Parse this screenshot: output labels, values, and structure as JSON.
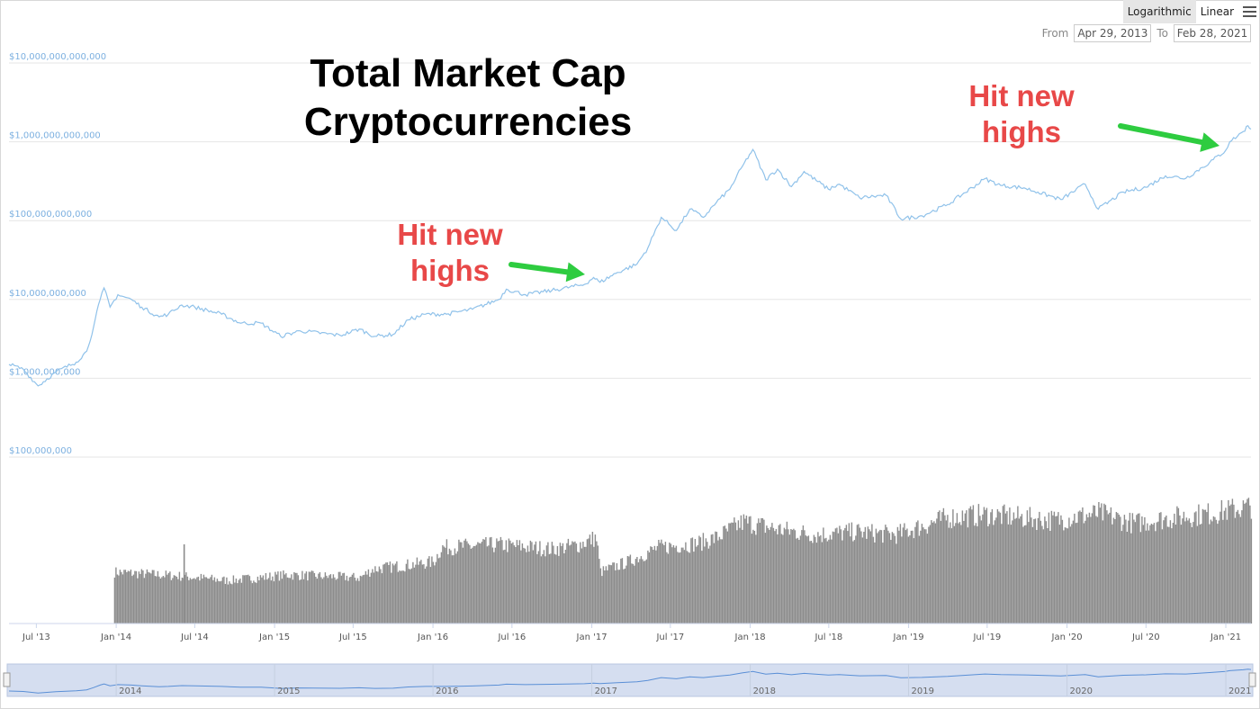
{
  "toolbar": {
    "scale_options": [
      "Logarithmic",
      "Linear"
    ],
    "active_scale": "Logarithmic",
    "menu_icon": "hamburger-menu-icon"
  },
  "date_range": {
    "from_label": "From",
    "from_value": "Apr 29, 2013",
    "to_label": "To",
    "to_value": "Feb 28, 2021"
  },
  "chart_data": {
    "type": "line",
    "title": "Total Market Cap\nCryptocurrencies",
    "y_scale": "log",
    "ylim": [
      100000000,
      10000000000000
    ],
    "y_ticks": [
      {
        "value": 10000000000000,
        "label": "$10,000,000,000,000"
      },
      {
        "value": 1000000000000,
        "label": "$1,000,000,000,000"
      },
      {
        "value": 100000000000,
        "label": "$100,000,000,000"
      },
      {
        "value": 10000000000,
        "label": "$10,000,000,000"
      },
      {
        "value": 1000000000,
        "label": "$1,000,000,000"
      },
      {
        "value": 100000000,
        "label": "$100,000,000"
      }
    ],
    "x_range": [
      "2013-04-29",
      "2021-02-28"
    ],
    "x_ticks": [
      {
        "date": "2013-07-01",
        "label": "Jul '13"
      },
      {
        "date": "2014-01-01",
        "label": "Jan '14"
      },
      {
        "date": "2014-07-01",
        "label": "Jul '14"
      },
      {
        "date": "2015-01-01",
        "label": "Jan '15"
      },
      {
        "date": "2015-07-01",
        "label": "Jul '15"
      },
      {
        "date": "2016-01-01",
        "label": "Jan '16"
      },
      {
        "date": "2016-07-01",
        "label": "Jul '16"
      },
      {
        "date": "2017-01-01",
        "label": "Jan '17"
      },
      {
        "date": "2017-07-01",
        "label": "Jul '17"
      },
      {
        "date": "2018-01-01",
        "label": "Jan '18"
      },
      {
        "date": "2018-07-01",
        "label": "Jul '18"
      },
      {
        "date": "2019-01-01",
        "label": "Jan '19"
      },
      {
        "date": "2019-07-01",
        "label": "Jul '19"
      },
      {
        "date": "2020-01-01",
        "label": "Jan '20"
      },
      {
        "date": "2020-07-01",
        "label": "Jul '20"
      },
      {
        "date": "2021-01-01",
        "label": "Jan '21"
      }
    ],
    "series": [
      {
        "color": "#90c2ea",
        "points": [
          [
            "2013-04-29",
            1500000000
          ],
          [
            "2013-06-01",
            1300000000
          ],
          [
            "2013-07-05",
            800000000
          ],
          [
            "2013-08-15",
            1200000000
          ],
          [
            "2013-10-01",
            1600000000
          ],
          [
            "2013-10-25",
            2200000000
          ],
          [
            "2013-11-10",
            4500000000
          ],
          [
            "2013-11-25",
            10000000000
          ],
          [
            "2013-12-04",
            14000000000
          ],
          [
            "2013-12-18",
            8000000000
          ],
          [
            "2014-01-05",
            11500000000
          ],
          [
            "2014-02-05",
            10000000000
          ],
          [
            "2014-03-01",
            8000000000
          ],
          [
            "2014-04-10",
            6000000000
          ],
          [
            "2014-05-01",
            6500000000
          ],
          [
            "2014-06-01",
            8500000000
          ],
          [
            "2014-07-01",
            8000000000
          ],
          [
            "2014-09-01",
            6500000000
          ],
          [
            "2014-10-15",
            5000000000
          ],
          [
            "2014-12-01",
            5000000000
          ],
          [
            "2015-01-15",
            3400000000
          ],
          [
            "2015-03-01",
            4000000000
          ],
          [
            "2015-06-01",
            3500000000
          ],
          [
            "2015-07-15",
            4200000000
          ],
          [
            "2015-08-20",
            3400000000
          ],
          [
            "2015-10-01",
            3600000000
          ],
          [
            "2015-11-05",
            5500000000
          ],
          [
            "2015-12-15",
            6500000000
          ],
          [
            "2016-02-01",
            6500000000
          ],
          [
            "2016-04-01",
            7500000000
          ],
          [
            "2016-06-01",
            10000000000
          ],
          [
            "2016-06-18",
            13500000000
          ],
          [
            "2016-08-01",
            11500000000
          ],
          [
            "2016-10-01",
            13000000000
          ],
          [
            "2016-12-15",
            15500000000
          ],
          [
            "2017-01-05",
            19000000000
          ],
          [
            "2017-01-20",
            16500000000
          ],
          [
            "2017-03-01",
            22000000000
          ],
          [
            "2017-04-15",
            28000000000
          ],
          [
            "2017-05-10",
            45000000000
          ],
          [
            "2017-06-10",
            110000000000
          ],
          [
            "2017-07-15",
            75000000000
          ],
          [
            "2017-08-15",
            140000000000
          ],
          [
            "2017-09-15",
            110000000000
          ],
          [
            "2017-10-15",
            170000000000
          ],
          [
            "2017-11-15",
            250000000000
          ],
          [
            "2017-12-15",
            500000000000
          ],
          [
            "2018-01-07",
            800000000000
          ],
          [
            "2018-02-06",
            330000000000
          ],
          [
            "2018-03-05",
            450000000000
          ],
          [
            "2018-04-06",
            270000000000
          ],
          [
            "2018-05-05",
            420000000000
          ],
          [
            "2018-06-30",
            250000000000
          ],
          [
            "2018-07-25",
            290000000000
          ],
          [
            "2018-09-10",
            195000000000
          ],
          [
            "2018-11-10",
            210000000000
          ],
          [
            "2018-12-14",
            105000000000
          ],
          [
            "2019-02-01",
            115000000000
          ],
          [
            "2019-04-01",
            160000000000
          ],
          [
            "2019-06-26",
            340000000000
          ],
          [
            "2019-08-01",
            280000000000
          ],
          [
            "2019-09-24",
            260000000000
          ],
          [
            "2019-10-26",
            230000000000
          ],
          [
            "2019-12-18",
            185000000000
          ],
          [
            "2020-02-12",
            290000000000
          ],
          [
            "2020-03-13",
            140000000000
          ],
          [
            "2020-05-10",
            230000000000
          ],
          [
            "2020-07-01",
            265000000000
          ],
          [
            "2020-08-15",
            370000000000
          ],
          [
            "2020-10-01",
            345000000000
          ],
          [
            "2020-11-25",
            550000000000
          ],
          [
            "2020-12-31",
            770000000000
          ],
          [
            "2021-01-10",
            1000000000000
          ],
          [
            "2021-02-10",
            1350000000000
          ],
          [
            "2021-02-21",
            1600000000000
          ],
          [
            "2021-02-28",
            1450000000000
          ]
        ]
      }
    ],
    "volume_series": {
      "color": "#8c8c8c",
      "start": "2013-12-27",
      "levels": [
        [
          "2013-12-27",
          0.36
        ],
        [
          "2014-06-01",
          0.33
        ],
        [
          "2014-09-15",
          0.3
        ],
        [
          "2015-02-01",
          0.34
        ],
        [
          "2015-07-15",
          0.32
        ],
        [
          "2015-08-15",
          0.38
        ],
        [
          "2016-01-01",
          0.43
        ],
        [
          "2016-01-20",
          0.53
        ],
        [
          "2016-06-01",
          0.55
        ],
        [
          "2016-10-01",
          0.52
        ],
        [
          "2016-12-01",
          0.55
        ],
        [
          "2017-01-10",
          0.6
        ],
        [
          "2017-01-20",
          0.36
        ],
        [
          "2017-04-01",
          0.44
        ],
        [
          "2017-06-01",
          0.53
        ],
        [
          "2017-09-01",
          0.56
        ],
        [
          "2017-10-15",
          0.6
        ],
        [
          "2017-12-15",
          0.71
        ],
        [
          "2018-03-01",
          0.66
        ],
        [
          "2018-06-01",
          0.62
        ],
        [
          "2018-09-01",
          0.64
        ],
        [
          "2018-12-01",
          0.62
        ],
        [
          "2019-04-01",
          0.74
        ],
        [
          "2019-07-01",
          0.76
        ],
        [
          "2019-12-01",
          0.72
        ],
        [
          "2020-03-15",
          0.77
        ],
        [
          "2020-06-01",
          0.7
        ],
        [
          "2020-09-01",
          0.74
        ],
        [
          "2020-12-01",
          0.77
        ],
        [
          "2021-02-28",
          0.82
        ]
      ]
    },
    "annotations": [
      {
        "text": "Hit new\nhighs",
        "color": "#e84848",
        "arrow_color": "#2ecc40",
        "target_date": "2017-01-10"
      },
      {
        "text": "Hit new\nhighs",
        "color": "#e84848",
        "arrow_color": "#2ecc40",
        "target_date": "2021-01-10"
      }
    ],
    "navigator": {
      "year_labels": [
        "2014",
        "2015",
        "2016",
        "2017",
        "2018",
        "2019",
        "2020",
        "2021"
      ],
      "fill_color": "#d5def0",
      "line_color": "#5a8fd6"
    }
  }
}
